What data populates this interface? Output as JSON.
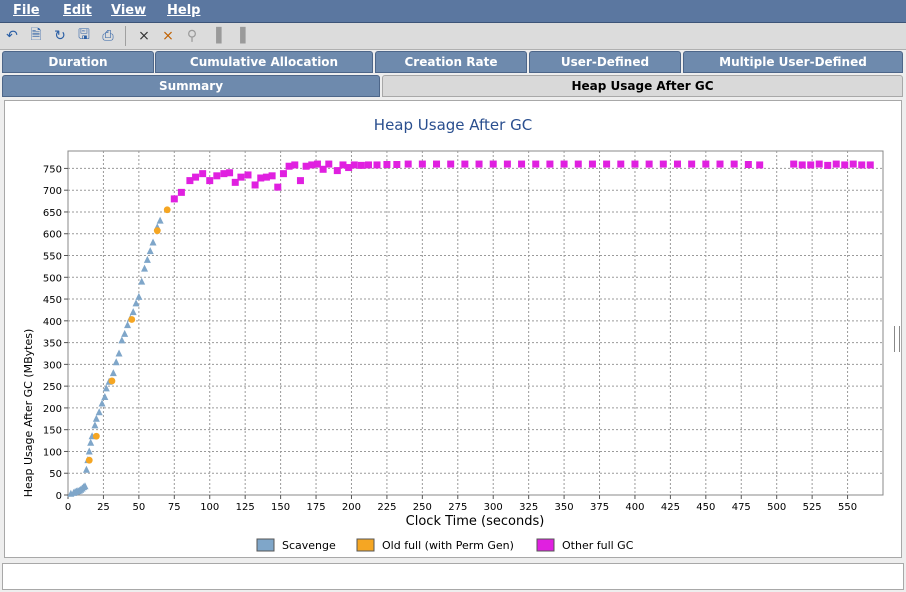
{
  "menu": {
    "file": "File",
    "edit": "Edit",
    "view": "View",
    "help": "Help"
  },
  "toolbar_icons": [
    "undo-icon",
    "document-icon",
    "refresh-icon",
    "save-icon",
    "print-icon",
    "chart-tool-icon",
    "chart-tool-2-icon",
    "zoom-icon",
    "bars-icon",
    "bars-2-icon"
  ],
  "tabs_row1": [
    "Duration",
    "Cumulative Allocation",
    "Creation Rate",
    "User-Defined",
    "Multiple User-Defined"
  ],
  "tabs_row2": [
    "Summary",
    "Heap Usage After GC"
  ],
  "active_tab": "Heap Usage After GC",
  "colors": {
    "scavenge": "#7fa6c9",
    "old_full": "#f5a623",
    "other_full": "#e020e0",
    "title": "#2a4f8f",
    "menubar": "#5b77a0"
  },
  "chart_data": {
    "type": "scatter",
    "title": "Heap Usage After GC",
    "xlabel": "Clock Time  (seconds)",
    "ylabel": "Heap Usage After GC  (MBytes)",
    "xlim": [
      0,
      575
    ],
    "ylim": [
      0,
      790
    ],
    "xticks": [
      0,
      25,
      50,
      75,
      100,
      125,
      150,
      175,
      200,
      225,
      250,
      275,
      300,
      325,
      350,
      375,
      400,
      425,
      450,
      475,
      500,
      525,
      550
    ],
    "yticks": [
      0,
      50,
      100,
      150,
      200,
      250,
      300,
      350,
      400,
      450,
      500,
      550,
      600,
      650,
      700,
      750
    ],
    "grid": true,
    "legend_position": "bottom",
    "series": [
      {
        "name": "Scavenge",
        "marker": "triangle",
        "points": [
          [
            2,
            3
          ],
          [
            4,
            5
          ],
          [
            5,
            7
          ],
          [
            6,
            8
          ],
          [
            7,
            9
          ],
          [
            8,
            10
          ],
          [
            9,
            12
          ],
          [
            10,
            15
          ],
          [
            11,
            18
          ],
          [
            12,
            20
          ],
          [
            13,
            58
          ],
          [
            14,
            80
          ],
          [
            15,
            100
          ],
          [
            16,
            120
          ],
          [
            17,
            135
          ],
          [
            19,
            160
          ],
          [
            20,
            175
          ],
          [
            22,
            190
          ],
          [
            24,
            210
          ],
          [
            26,
            225
          ],
          [
            27,
            245
          ],
          [
            29,
            260
          ],
          [
            32,
            280
          ],
          [
            34,
            305
          ],
          [
            36,
            325
          ],
          [
            38,
            355
          ],
          [
            40,
            370
          ],
          [
            42,
            390
          ],
          [
            44,
            405
          ],
          [
            46,
            420
          ],
          [
            48,
            440
          ],
          [
            50,
            455
          ],
          [
            52,
            490
          ],
          [
            54,
            520
          ],
          [
            56,
            540
          ],
          [
            58,
            560
          ],
          [
            60,
            580
          ],
          [
            63,
            615
          ],
          [
            65,
            630
          ]
        ]
      },
      {
        "name": "Old full (with Perm Gen)",
        "marker": "circle",
        "points": [
          [
            15,
            80
          ],
          [
            20,
            135
          ],
          [
            31,
            262
          ],
          [
            45,
            403
          ],
          [
            63,
            607
          ],
          [
            70,
            655
          ]
        ]
      },
      {
        "name": "Other full GC",
        "marker": "square",
        "points": [
          [
            75,
            680
          ],
          [
            80,
            695
          ],
          [
            86,
            722
          ],
          [
            90,
            730
          ],
          [
            95,
            738
          ],
          [
            100,
            722
          ],
          [
            105,
            733
          ],
          [
            110,
            738
          ],
          [
            114,
            740
          ],
          [
            118,
            718
          ],
          [
            122,
            730
          ],
          [
            127,
            735
          ],
          [
            132,
            712
          ],
          [
            136,
            728
          ],
          [
            140,
            730
          ],
          [
            144,
            733
          ],
          [
            148,
            707
          ],
          [
            152,
            738
          ],
          [
            156,
            755
          ],
          [
            160,
            758
          ],
          [
            164,
            722
          ],
          [
            168,
            755
          ],
          [
            172,
            758
          ],
          [
            176,
            760
          ],
          [
            180,
            748
          ],
          [
            184,
            760
          ],
          [
            190,
            745
          ],
          [
            194,
            758
          ],
          [
            198,
            752
          ],
          [
            202,
            758
          ],
          [
            207,
            757
          ],
          [
            212,
            758
          ],
          [
            218,
            758
          ],
          [
            225,
            759
          ],
          [
            232,
            759
          ],
          [
            240,
            760
          ],
          [
            250,
            760
          ],
          [
            260,
            760
          ],
          [
            270,
            760
          ],
          [
            280,
            760
          ],
          [
            290,
            760
          ],
          [
            300,
            760
          ],
          [
            310,
            760
          ],
          [
            320,
            760
          ],
          [
            330,
            760
          ],
          [
            340,
            760
          ],
          [
            350,
            760
          ],
          [
            360,
            760
          ],
          [
            370,
            760
          ],
          [
            380,
            760
          ],
          [
            390,
            760
          ],
          [
            400,
            760
          ],
          [
            410,
            760
          ],
          [
            420,
            760
          ],
          [
            430,
            760
          ],
          [
            440,
            760
          ],
          [
            450,
            760
          ],
          [
            460,
            760
          ],
          [
            470,
            760
          ],
          [
            480,
            759
          ],
          [
            488,
            758
          ],
          [
            512,
            760
          ],
          [
            518,
            758
          ],
          [
            524,
            758
          ],
          [
            530,
            760
          ],
          [
            536,
            757
          ],
          [
            542,
            760
          ],
          [
            548,
            758
          ],
          [
            554,
            760
          ],
          [
            560,
            758
          ],
          [
            566,
            758
          ]
        ]
      }
    ]
  }
}
